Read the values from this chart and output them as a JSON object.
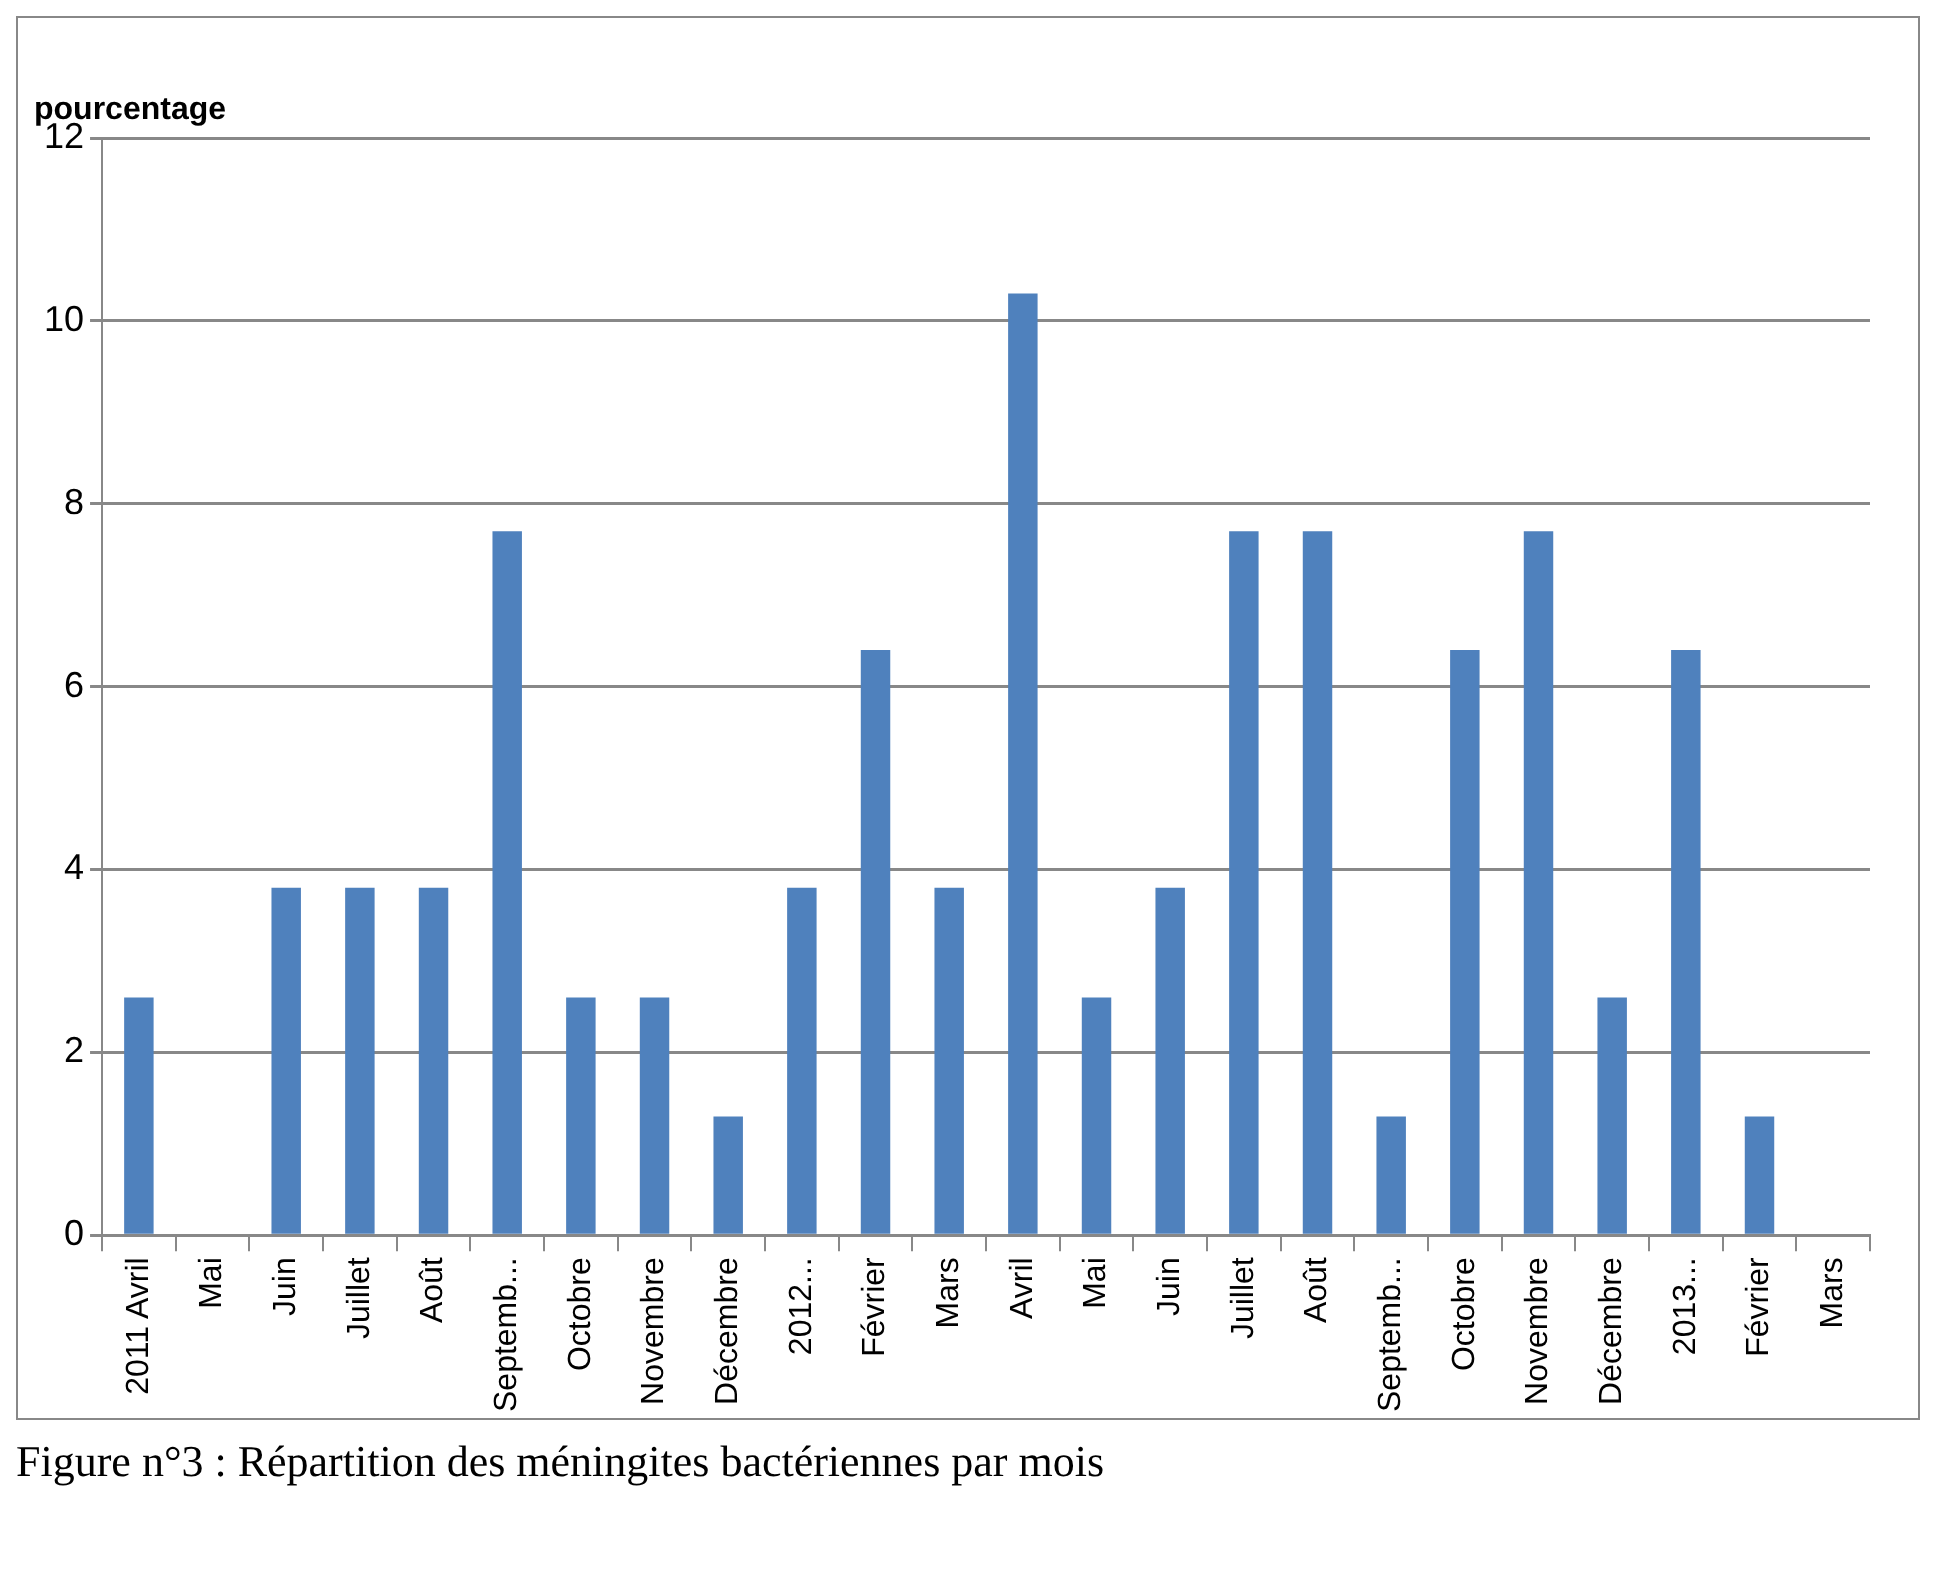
{
  "chart_data": {
    "type": "bar",
    "title": "Figure n°3 : Répartition des méningites bactériennes par mois",
    "ylabel": "pourcentage",
    "categories": [
      "2011 Avril",
      "Mai",
      "Juin",
      "Juillet",
      "Août",
      "Septemb...",
      "Octobre",
      "Novembre",
      "Décembre",
      "2012...",
      "Février",
      "Mars",
      "Avril",
      "Mai",
      "Juin",
      "Juillet",
      "Août",
      "Septemb...",
      "Octobre",
      "Novembre",
      "Décembre",
      "2013...",
      "Février",
      "Mars"
    ],
    "values": [
      2.6,
      0,
      3.8,
      3.8,
      3.8,
      7.7,
      2.6,
      2.6,
      1.3,
      3.8,
      6.4,
      3.8,
      10.3,
      2.6,
      3.8,
      7.7,
      7.7,
      1.3,
      6.4,
      7.7,
      2.6,
      6.4,
      1.3,
      0
    ],
    "color": "#4f81bd",
    "ylim": [
      0,
      12
    ],
    "yticks": [
      0,
      2,
      4,
      6,
      8,
      10,
      12
    ],
    "grid": "y",
    "legend": false
  }
}
